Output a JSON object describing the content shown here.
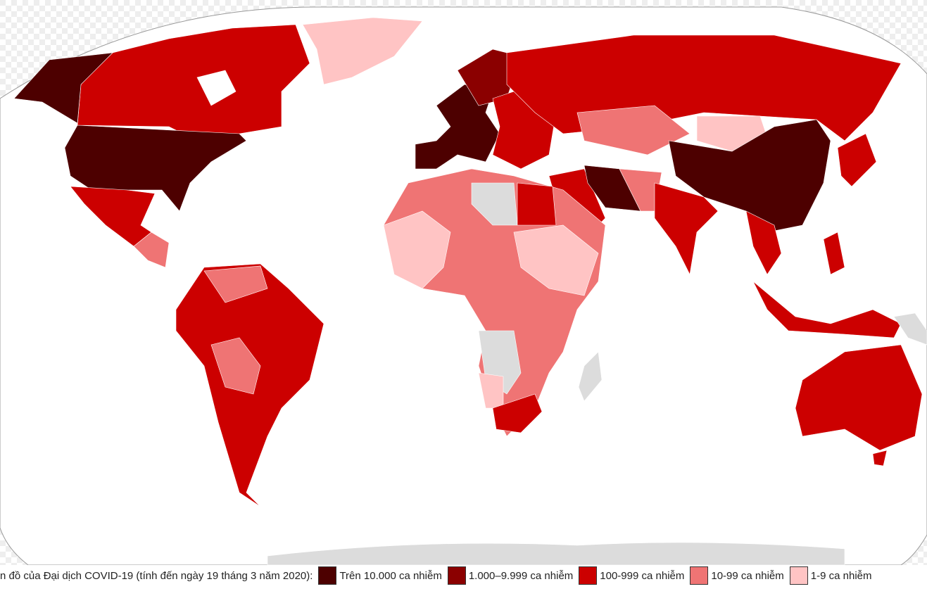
{
  "legend": {
    "caption": "n đồ của Đại dịch COVID-19 (tính đến ngày 19 tháng 3 năm 2020):",
    "items": [
      {
        "label": "Trên 10.000 ca nhiễm",
        "color": "#4d0000"
      },
      {
        "label": "1.000–9.999 ca nhiễm",
        "color": "#8b0000"
      },
      {
        "label": "100-999 ca nhiễm",
        "color": "#cc0000"
      },
      {
        "label": "10-99 ca nhiễm",
        "color": "#ef7474"
      },
      {
        "label": "1-9 ca nhiễm",
        "color": "#ffc4c4"
      }
    ]
  }
}
